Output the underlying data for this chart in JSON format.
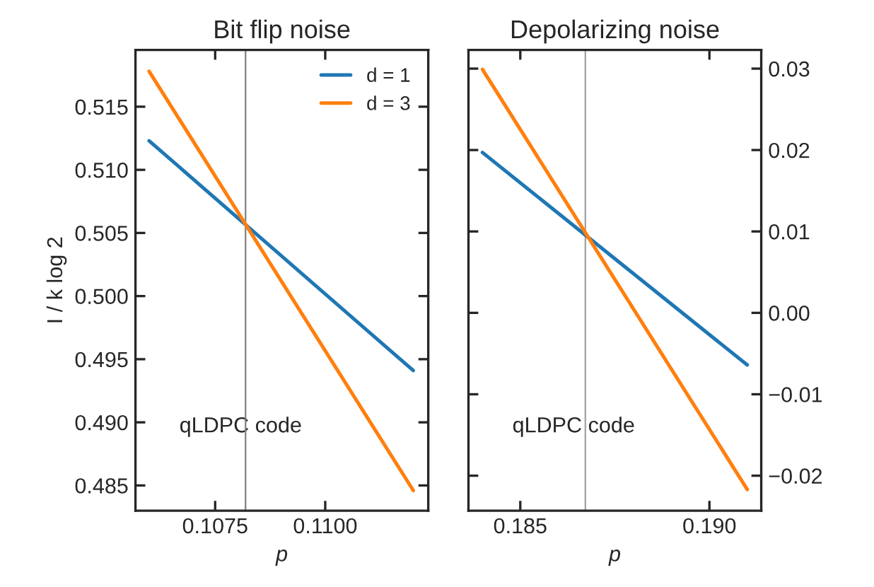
{
  "chart_data": [
    {
      "type": "line",
      "title": "Bit flip noise",
      "xlabel": "p",
      "ylabel": "I / k log 2",
      "x": [
        0.106,
        0.112
      ],
      "series": [
        {
          "name": "d = 1",
          "color": "#1f77b4",
          "values": [
            0.5123,
            0.4941
          ]
        },
        {
          "name": "d = 3",
          "color": "#ff7f0e",
          "values": [
            0.5178,
            0.4846
          ]
        }
      ],
      "xlim": [
        0.10569,
        0.11234
      ],
      "ylim": [
        0.483,
        0.5195
      ],
      "xticks": [
        {
          "value": 0.1075,
          "label": "0.1075"
        },
        {
          "value": 0.11,
          "label": "0.1100"
        }
      ],
      "yticks": [
        {
          "value": 0.485,
          "label": "0.485"
        },
        {
          "value": 0.49,
          "label": "0.490"
        },
        {
          "value": 0.495,
          "label": "0.495"
        },
        {
          "value": 0.5,
          "label": "0.500"
        },
        {
          "value": 0.505,
          "label": "0.505"
        },
        {
          "value": 0.51,
          "label": "0.510"
        },
        {
          "value": 0.515,
          "label": "0.515"
        }
      ],
      "ref_lines": [
        {
          "axis": "x",
          "value": 0.10819,
          "color": "#808080"
        }
      ],
      "annotations": [
        "qLDPC code"
      ],
      "legend": "top right",
      "grid": false,
      "marker": "none",
      "line_style": "solid"
    },
    {
      "type": "line",
      "title": "Depolarizing noise",
      "xlabel": "p",
      "x": [
        0.184,
        0.191
      ],
      "series": [
        {
          "color": "#1f77b4",
          "values": [
            0.0197,
            -0.0064
          ]
        },
        {
          "color": "#ff7f0e",
          "values": [
            0.0299,
            -0.0217
          ]
        }
      ],
      "xlim": [
        0.18363,
        0.19137
      ],
      "ylim": [
        -0.0243,
        0.0323
      ],
      "xticks": [
        {
          "value": 0.185,
          "label": "0.185"
        },
        {
          "value": 0.19,
          "label": "0.190"
        }
      ],
      "yticks": [
        {
          "value": -0.02,
          "label": "−0.02"
        },
        {
          "value": -0.01,
          "label": "−0.01"
        },
        {
          "value": 0,
          "label": "0.00"
        },
        {
          "value": 0.01,
          "label": "0.01"
        },
        {
          "value": 0.02,
          "label": "0.02"
        },
        {
          "value": 0.03,
          "label": "0.03"
        }
      ],
      "ref_lines": [
        {
          "axis": "x",
          "value": 0.18672,
          "color": "#a0a0a0"
        }
      ],
      "annotations": [
        "qLDPC code"
      ],
      "grid": false,
      "marker": "none",
      "line_style": "solid"
    }
  ]
}
